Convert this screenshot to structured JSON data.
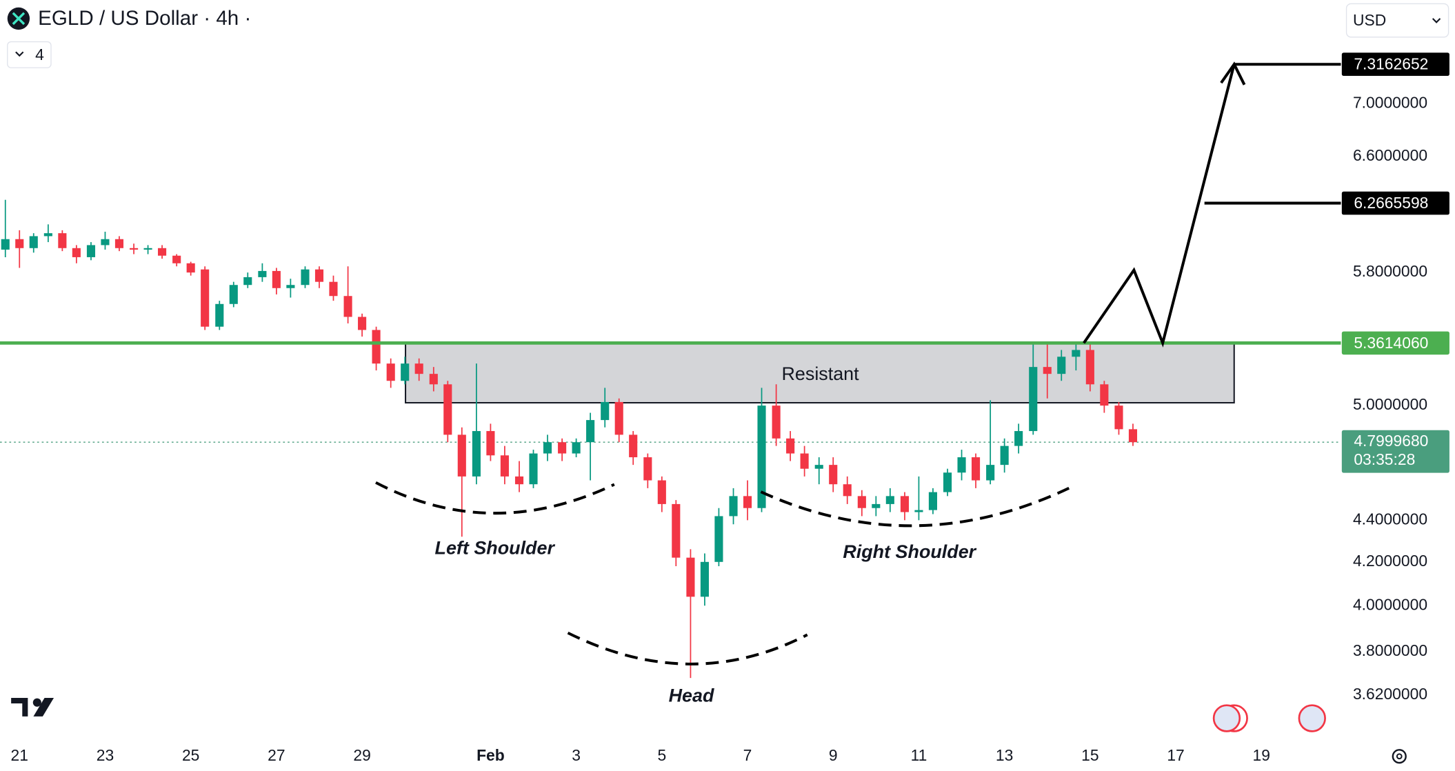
{
  "chart_data": {
    "type": "candlestick",
    "title": "EGLD / US Dollar · 4h ·",
    "interval_badge": "4",
    "currency": "USD",
    "log_scale": true,
    "up_color": "#089981",
    "down_color": "#f23645",
    "xlim": [
      -0.455,
      30.855
    ],
    "ylim": [
      3.452,
      7.86
    ],
    "xticks": [
      {
        "value": 0,
        "label": "21"
      },
      {
        "value": 2,
        "label": "23"
      },
      {
        "value": 4,
        "label": "25"
      },
      {
        "value": 6,
        "label": "27"
      },
      {
        "value": 8,
        "label": "29"
      },
      {
        "value": 11,
        "label": "Feb"
      },
      {
        "value": 13,
        "label": "3"
      },
      {
        "value": 15,
        "label": "5"
      },
      {
        "value": 17,
        "label": "7"
      },
      {
        "value": 19,
        "label": "9"
      },
      {
        "value": 21,
        "label": "11"
      },
      {
        "value": 23,
        "label": "13"
      },
      {
        "value": 25,
        "label": "15"
      },
      {
        "value": 27,
        "label": "17"
      },
      {
        "value": 29,
        "label": "19"
      }
    ],
    "yticks": [
      {
        "value": 7.0,
        "label": "7.0000000"
      },
      {
        "value": 6.6,
        "label": "6.6000000"
      },
      {
        "value": 5.8,
        "label": "5.8000000"
      },
      {
        "value": 5.0,
        "label": "5.0000000"
      },
      {
        "value": 4.4,
        "label": "4.4000000"
      },
      {
        "value": 4.2,
        "label": "4.2000000"
      },
      {
        "value": 4.0,
        "label": "4.0000000"
      },
      {
        "value": 3.8,
        "label": "3.8000000"
      },
      {
        "value": 3.62,
        "label": "3.6200000"
      }
    ],
    "x": [
      -0.33,
      0,
      0.33,
      0.67,
      1,
      1.33,
      1.67,
      2,
      2.33,
      2.67,
      3,
      3.33,
      3.67,
      4,
      4.33,
      4.67,
      5,
      5.33,
      5.67,
      6,
      6.33,
      6.67,
      7,
      7.33,
      7.67,
      8,
      8.33,
      8.67,
      9,
      9.33,
      9.67,
      10,
      10.33,
      10.67,
      11,
      11.33,
      11.67,
      12,
      12.33,
      12.67,
      13,
      13.33,
      13.67,
      14,
      14.33,
      14.67,
      15,
      15.33,
      15.67,
      16,
      16.33,
      16.67,
      17,
      17.33,
      17.67,
      18,
      18.33,
      18.67,
      19,
      19.33,
      19.67,
      20,
      20.33,
      20.67,
      21,
      21.33,
      21.67,
      22,
      22.33,
      22.67,
      23,
      23.33,
      23.67,
      24,
      24.33,
      24.67,
      25,
      25.33,
      25.67,
      26
    ],
    "ohlc": [
      [
        5.95,
        6.29,
        5.9,
        6.02
      ],
      [
        6.02,
        6.08,
        5.83,
        5.96
      ],
      [
        5.96,
        6.06,
        5.93,
        6.04
      ],
      [
        6.04,
        6.12,
        6.0,
        6.06
      ],
      [
        6.06,
        6.08,
        5.94,
        5.96
      ],
      [
        5.96,
        5.98,
        5.86,
        5.9
      ],
      [
        5.9,
        6.0,
        5.88,
        5.98
      ],
      [
        5.98,
        6.07,
        5.95,
        6.02
      ],
      [
        6.02,
        6.04,
        5.94,
        5.96
      ],
      [
        5.96,
        5.99,
        5.92,
        5.95
      ],
      [
        5.95,
        5.98,
        5.92,
        5.96
      ],
      [
        5.96,
        5.98,
        5.89,
        5.91
      ],
      [
        5.91,
        5.92,
        5.84,
        5.86
      ],
      [
        5.86,
        5.87,
        5.78,
        5.8
      ],
      [
        5.82,
        5.84,
        5.44,
        5.46
      ],
      [
        5.46,
        5.62,
        5.44,
        5.6
      ],
      [
        5.6,
        5.74,
        5.58,
        5.72
      ],
      [
        5.72,
        5.8,
        5.7,
        5.77
      ],
      [
        5.77,
        5.86,
        5.74,
        5.81
      ],
      [
        5.81,
        5.83,
        5.66,
        5.7
      ],
      [
        5.7,
        5.76,
        5.64,
        5.72
      ],
      [
        5.72,
        5.84,
        5.7,
        5.82
      ],
      [
        5.82,
        5.84,
        5.7,
        5.74
      ],
      [
        5.74,
        5.78,
        5.62,
        5.65
      ],
      [
        5.65,
        5.84,
        5.48,
        5.52
      ],
      [
        5.52,
        5.54,
        5.4,
        5.44
      ],
      [
        5.44,
        5.46,
        5.2,
        5.24
      ],
      [
        5.24,
        5.27,
        5.1,
        5.14
      ],
      [
        5.14,
        5.28,
        5.12,
        5.24
      ],
      [
        5.24,
        5.27,
        5.14,
        5.18
      ],
      [
        5.18,
        5.22,
        5.08,
        5.12
      ],
      [
        5.12,
        5.14,
        4.8,
        4.84
      ],
      [
        4.84,
        4.88,
        4.32,
        4.62
      ],
      [
        4.62,
        5.24,
        4.58,
        4.86
      ],
      [
        4.86,
        4.9,
        4.7,
        4.73
      ],
      [
        4.73,
        4.78,
        4.58,
        4.62
      ],
      [
        4.62,
        4.7,
        4.54,
        4.58
      ],
      [
        4.58,
        4.76,
        4.56,
        4.74
      ],
      [
        4.74,
        4.84,
        4.7,
        4.8
      ],
      [
        4.8,
        4.82,
        4.7,
        4.74
      ],
      [
        4.74,
        4.82,
        4.72,
        4.8
      ],
      [
        4.8,
        4.96,
        4.6,
        4.92
      ],
      [
        4.92,
        5.1,
        4.88,
        5.02
      ],
      [
        5.02,
        5.04,
        4.8,
        4.84
      ],
      [
        4.84,
        4.86,
        4.68,
        4.72
      ],
      [
        4.72,
        4.74,
        4.56,
        4.6
      ],
      [
        4.6,
        4.62,
        4.44,
        4.48
      ],
      [
        4.48,
        4.5,
        4.18,
        4.22
      ],
      [
        4.22,
        4.26,
        3.69,
        4.04
      ],
      [
        4.04,
        4.24,
        4.0,
        4.2
      ],
      [
        4.2,
        4.46,
        4.18,
        4.42
      ],
      [
        4.42,
        4.56,
        4.38,
        4.52
      ],
      [
        4.52,
        4.6,
        4.4,
        4.46
      ],
      [
        4.46,
        5.1,
        4.44,
        5.0
      ],
      [
        5.0,
        5.12,
        4.78,
        4.82
      ],
      [
        4.82,
        4.86,
        4.7,
        4.74
      ],
      [
        4.74,
        4.78,
        4.62,
        4.66
      ],
      [
        4.66,
        4.72,
        4.58,
        4.68
      ],
      [
        4.68,
        4.72,
        4.54,
        4.58
      ],
      [
        4.58,
        4.62,
        4.48,
        4.52
      ],
      [
        4.52,
        4.55,
        4.42,
        4.46
      ],
      [
        4.46,
        4.52,
        4.42,
        4.48
      ],
      [
        4.48,
        4.56,
        4.44,
        4.52
      ],
      [
        4.52,
        4.54,
        4.4,
        4.44
      ],
      [
        4.44,
        4.62,
        4.4,
        4.45
      ],
      [
        4.45,
        4.56,
        4.43,
        4.54
      ],
      [
        4.54,
        4.66,
        4.52,
        4.64
      ],
      [
        4.64,
        4.76,
        4.6,
        4.72
      ],
      [
        4.72,
        4.74,
        4.56,
        4.6
      ],
      [
        4.6,
        5.03,
        4.58,
        4.68
      ],
      [
        4.68,
        4.82,
        4.64,
        4.78
      ],
      [
        4.78,
        4.9,
        4.74,
        4.86
      ],
      [
        4.86,
        5.36,
        4.84,
        5.22
      ],
      [
        5.22,
        5.36,
        5.04,
        5.18
      ],
      [
        5.18,
        5.32,
        5.14,
        5.28
      ],
      [
        5.28,
        5.36,
        5.2,
        5.32
      ],
      [
        5.32,
        5.36,
        5.08,
        5.12
      ],
      [
        5.12,
        5.14,
        4.96,
        5.0
      ],
      [
        5.0,
        5.02,
        4.84,
        4.87
      ],
      [
        4.87,
        4.9,
        4.78,
        4.8
      ]
    ],
    "neckline": {
      "value": 5.361406,
      "label": "5.3614060",
      "color": "#4caf50"
    },
    "current_price": {
      "value": 4.799968,
      "label": "4.7999680",
      "countdown": "03:35:28",
      "color": "#4a9e7e"
    },
    "targets": [
      {
        "value": 7.3162652,
        "label": "7.3162652"
      },
      {
        "value": 6.2665598,
        "label": "6.2665598"
      }
    ],
    "annotations": {
      "zone": "Resistant",
      "left_shoulder": "Left Shoulder",
      "head": "Head",
      "right_shoulder": "Right Shoulder"
    }
  }
}
